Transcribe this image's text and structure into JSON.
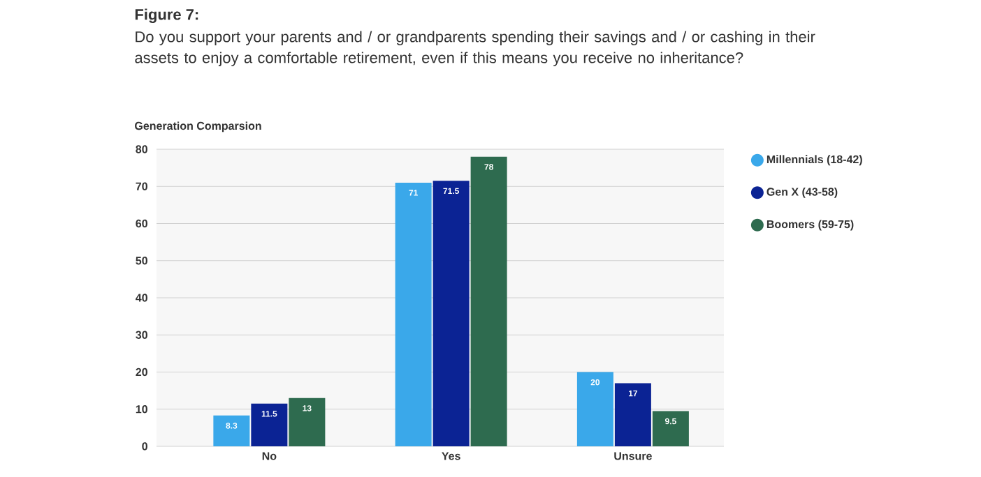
{
  "chart_data": {
    "type": "bar",
    "title": "Figure 7:",
    "subtitle": "Do you support your parents and / or grandparents spending their savings and / or cashing in their assets to enjoy a comfortable retirement, even if this means you receive no inheritance?",
    "annotations": [
      "Generation Comparsion"
    ],
    "categories": [
      "No",
      "Yes",
      "Unsure"
    ],
    "series": [
      {
        "name": "Millennials (18-42)",
        "color": "#3aa8ea",
        "values": [
          8.3,
          71,
          20
        ]
      },
      {
        "name": "Gen X (43-58)",
        "color": "#0b2394",
        "values": [
          11.5,
          71.5,
          17
        ]
      },
      {
        "name": "Boomers (59-75)",
        "color": "#2e6b4f",
        "values": [
          13,
          78,
          9.5
        ]
      }
    ],
    "ylim": [
      0,
      80
    ],
    "yticks": [
      0,
      10,
      20,
      30,
      40,
      50,
      60,
      70,
      80
    ],
    "grid": "y",
    "legend": "right",
    "data_labels": true
  }
}
